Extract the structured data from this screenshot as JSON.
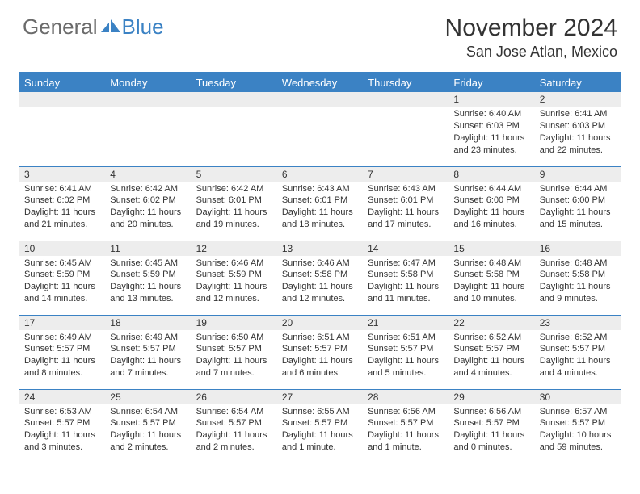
{
  "logo": {
    "word1": "General",
    "word2": "Blue"
  },
  "title": "November 2024",
  "location": "San Jose Atlan, Mexico",
  "colors": {
    "header_bg": "#3b82c4",
    "daynum_bg": "#ededed",
    "text": "#333333",
    "logo_gray": "#6b6b6b",
    "logo_blue": "#3b82c4",
    "border": "#3b82c4",
    "page_bg": "#ffffff"
  },
  "weekdays": [
    "Sunday",
    "Monday",
    "Tuesday",
    "Wednesday",
    "Thursday",
    "Friday",
    "Saturday"
  ],
  "weeks": [
    [
      {
        "day": "",
        "sunrise": "",
        "sunset": "",
        "daylight": ""
      },
      {
        "day": "",
        "sunrise": "",
        "sunset": "",
        "daylight": ""
      },
      {
        "day": "",
        "sunrise": "",
        "sunset": "",
        "daylight": ""
      },
      {
        "day": "",
        "sunrise": "",
        "sunset": "",
        "daylight": ""
      },
      {
        "day": "",
        "sunrise": "",
        "sunset": "",
        "daylight": ""
      },
      {
        "day": "1",
        "sunrise": "Sunrise: 6:40 AM",
        "sunset": "Sunset: 6:03 PM",
        "daylight": "Daylight: 11 hours and 23 minutes."
      },
      {
        "day": "2",
        "sunrise": "Sunrise: 6:41 AM",
        "sunset": "Sunset: 6:03 PM",
        "daylight": "Daylight: 11 hours and 22 minutes."
      }
    ],
    [
      {
        "day": "3",
        "sunrise": "Sunrise: 6:41 AM",
        "sunset": "Sunset: 6:02 PM",
        "daylight": "Daylight: 11 hours and 21 minutes."
      },
      {
        "day": "4",
        "sunrise": "Sunrise: 6:42 AM",
        "sunset": "Sunset: 6:02 PM",
        "daylight": "Daylight: 11 hours and 20 minutes."
      },
      {
        "day": "5",
        "sunrise": "Sunrise: 6:42 AM",
        "sunset": "Sunset: 6:01 PM",
        "daylight": "Daylight: 11 hours and 19 minutes."
      },
      {
        "day": "6",
        "sunrise": "Sunrise: 6:43 AM",
        "sunset": "Sunset: 6:01 PM",
        "daylight": "Daylight: 11 hours and 18 minutes."
      },
      {
        "day": "7",
        "sunrise": "Sunrise: 6:43 AM",
        "sunset": "Sunset: 6:01 PM",
        "daylight": "Daylight: 11 hours and 17 minutes."
      },
      {
        "day": "8",
        "sunrise": "Sunrise: 6:44 AM",
        "sunset": "Sunset: 6:00 PM",
        "daylight": "Daylight: 11 hours and 16 minutes."
      },
      {
        "day": "9",
        "sunrise": "Sunrise: 6:44 AM",
        "sunset": "Sunset: 6:00 PM",
        "daylight": "Daylight: 11 hours and 15 minutes."
      }
    ],
    [
      {
        "day": "10",
        "sunrise": "Sunrise: 6:45 AM",
        "sunset": "Sunset: 5:59 PM",
        "daylight": "Daylight: 11 hours and 14 minutes."
      },
      {
        "day": "11",
        "sunrise": "Sunrise: 6:45 AM",
        "sunset": "Sunset: 5:59 PM",
        "daylight": "Daylight: 11 hours and 13 minutes."
      },
      {
        "day": "12",
        "sunrise": "Sunrise: 6:46 AM",
        "sunset": "Sunset: 5:59 PM",
        "daylight": "Daylight: 11 hours and 12 minutes."
      },
      {
        "day": "13",
        "sunrise": "Sunrise: 6:46 AM",
        "sunset": "Sunset: 5:58 PM",
        "daylight": "Daylight: 11 hours and 12 minutes."
      },
      {
        "day": "14",
        "sunrise": "Sunrise: 6:47 AM",
        "sunset": "Sunset: 5:58 PM",
        "daylight": "Daylight: 11 hours and 11 minutes."
      },
      {
        "day": "15",
        "sunrise": "Sunrise: 6:48 AM",
        "sunset": "Sunset: 5:58 PM",
        "daylight": "Daylight: 11 hours and 10 minutes."
      },
      {
        "day": "16",
        "sunrise": "Sunrise: 6:48 AM",
        "sunset": "Sunset: 5:58 PM",
        "daylight": "Daylight: 11 hours and 9 minutes."
      }
    ],
    [
      {
        "day": "17",
        "sunrise": "Sunrise: 6:49 AM",
        "sunset": "Sunset: 5:57 PM",
        "daylight": "Daylight: 11 hours and 8 minutes."
      },
      {
        "day": "18",
        "sunrise": "Sunrise: 6:49 AM",
        "sunset": "Sunset: 5:57 PM",
        "daylight": "Daylight: 11 hours and 7 minutes."
      },
      {
        "day": "19",
        "sunrise": "Sunrise: 6:50 AM",
        "sunset": "Sunset: 5:57 PM",
        "daylight": "Daylight: 11 hours and 7 minutes."
      },
      {
        "day": "20",
        "sunrise": "Sunrise: 6:51 AM",
        "sunset": "Sunset: 5:57 PM",
        "daylight": "Daylight: 11 hours and 6 minutes."
      },
      {
        "day": "21",
        "sunrise": "Sunrise: 6:51 AM",
        "sunset": "Sunset: 5:57 PM",
        "daylight": "Daylight: 11 hours and 5 minutes."
      },
      {
        "day": "22",
        "sunrise": "Sunrise: 6:52 AM",
        "sunset": "Sunset: 5:57 PM",
        "daylight": "Daylight: 11 hours and 4 minutes."
      },
      {
        "day": "23",
        "sunrise": "Sunrise: 6:52 AM",
        "sunset": "Sunset: 5:57 PM",
        "daylight": "Daylight: 11 hours and 4 minutes."
      }
    ],
    [
      {
        "day": "24",
        "sunrise": "Sunrise: 6:53 AM",
        "sunset": "Sunset: 5:57 PM",
        "daylight": "Daylight: 11 hours and 3 minutes."
      },
      {
        "day": "25",
        "sunrise": "Sunrise: 6:54 AM",
        "sunset": "Sunset: 5:57 PM",
        "daylight": "Daylight: 11 hours and 2 minutes."
      },
      {
        "day": "26",
        "sunrise": "Sunrise: 6:54 AM",
        "sunset": "Sunset: 5:57 PM",
        "daylight": "Daylight: 11 hours and 2 minutes."
      },
      {
        "day": "27",
        "sunrise": "Sunrise: 6:55 AM",
        "sunset": "Sunset: 5:57 PM",
        "daylight": "Daylight: 11 hours and 1 minute."
      },
      {
        "day": "28",
        "sunrise": "Sunrise: 6:56 AM",
        "sunset": "Sunset: 5:57 PM",
        "daylight": "Daylight: 11 hours and 1 minute."
      },
      {
        "day": "29",
        "sunrise": "Sunrise: 6:56 AM",
        "sunset": "Sunset: 5:57 PM",
        "daylight": "Daylight: 11 hours and 0 minutes."
      },
      {
        "day": "30",
        "sunrise": "Sunrise: 6:57 AM",
        "sunset": "Sunset: 5:57 PM",
        "daylight": "Daylight: 10 hours and 59 minutes."
      }
    ]
  ]
}
